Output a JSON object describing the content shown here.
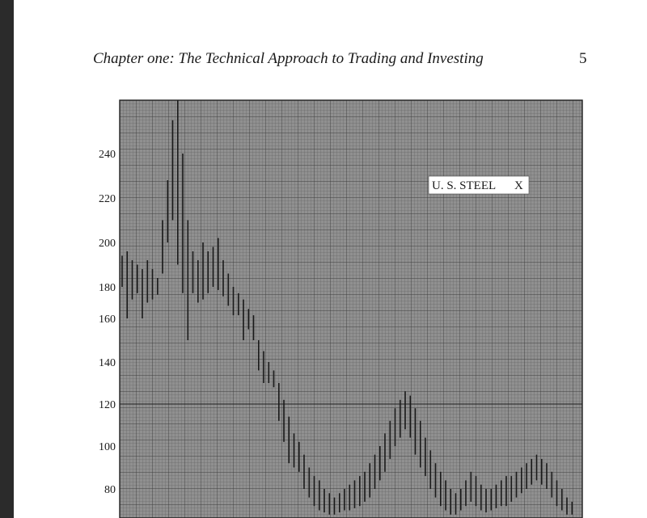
{
  "page": {
    "running_head": "Chapter one:   The Technical Approach to Trading and Investing",
    "page_number": "5"
  },
  "chart_data": {
    "type": "bar",
    "subtype": "high-low price bars",
    "label": "U. S. STEEL",
    "label_marker": "X",
    "grid": true,
    "y_scale": "log",
    "yticks": [
      "240",
      "220",
      "200",
      "180",
      "160",
      "140",
      "120",
      "100",
      "80"
    ],
    "ylim": [
      68,
      270
    ],
    "bars": [
      [
        194,
        180
      ],
      [
        196,
        160
      ],
      [
        192,
        172
      ],
      [
        190,
        176
      ],
      [
        188,
        160
      ],
      [
        192,
        170
      ],
      [
        188,
        172
      ],
      [
        184,
        175
      ],
      [
        210,
        186
      ],
      [
        228,
        200
      ],
      [
        255,
        210
      ],
      [
        266,
        190
      ],
      [
        240,
        176
      ],
      [
        210,
        150
      ],
      [
        196,
        176
      ],
      [
        192,
        170
      ],
      [
        200,
        172
      ],
      [
        196,
        176
      ],
      [
        198,
        180
      ],
      [
        202,
        178
      ],
      [
        192,
        174
      ],
      [
        186,
        168
      ],
      [
        180,
        162
      ],
      [
        176,
        162
      ],
      [
        172,
        150
      ],
      [
        166,
        155
      ],
      [
        162,
        150
      ],
      [
        150,
        136
      ],
      [
        145,
        130
      ],
      [
        140,
        130
      ],
      [
        136,
        128
      ],
      [
        130,
        112
      ],
      [
        122,
        102
      ],
      [
        114,
        92
      ],
      [
        106,
        90
      ],
      [
        102,
        88
      ],
      [
        96,
        80
      ],
      [
        90,
        76
      ],
      [
        86,
        72
      ],
      [
        84,
        70
      ],
      [
        80,
        69
      ],
      [
        78,
        68
      ],
      [
        76,
        68
      ],
      [
        78,
        69
      ],
      [
        80,
        70
      ],
      [
        82,
        70
      ],
      [
        84,
        71
      ],
      [
        86,
        72
      ],
      [
        88,
        74
      ],
      [
        92,
        76
      ],
      [
        96,
        80
      ],
      [
        100,
        84
      ],
      [
        106,
        88
      ],
      [
        112,
        94
      ],
      [
        118,
        100
      ],
      [
        122,
        104
      ],
      [
        126,
        108
      ],
      [
        124,
        104
      ],
      [
        118,
        96
      ],
      [
        112,
        90
      ],
      [
        104,
        86
      ],
      [
        98,
        80
      ],
      [
        92,
        76
      ],
      [
        88,
        72
      ],
      [
        84,
        70
      ],
      [
        80,
        68
      ],
      [
        78,
        68
      ],
      [
        80,
        70
      ],
      [
        84,
        72
      ],
      [
        88,
        74
      ],
      [
        86,
        72
      ],
      [
        82,
        70
      ],
      [
        80,
        69
      ],
      [
        80,
        70
      ],
      [
        82,
        71
      ],
      [
        84,
        72
      ],
      [
        86,
        72
      ],
      [
        86,
        74
      ],
      [
        88,
        76
      ],
      [
        90,
        78
      ],
      [
        92,
        80
      ],
      [
        94,
        82
      ],
      [
        96,
        84
      ],
      [
        94,
        82
      ],
      [
        92,
        80
      ],
      [
        88,
        76
      ],
      [
        84,
        72
      ],
      [
        80,
        70
      ],
      [
        76,
        68
      ],
      [
        74,
        68
      ]
    ]
  }
}
